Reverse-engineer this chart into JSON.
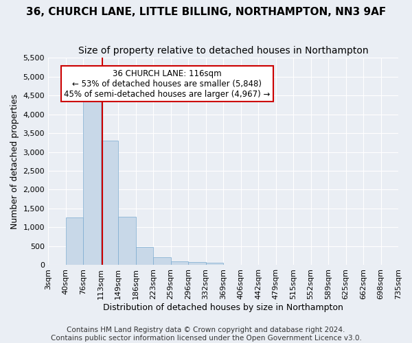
{
  "title": "36, CHURCH LANE, LITTLE BILLING, NORTHAMPTON, NN3 9AF",
  "subtitle": "Size of property relative to detached houses in Northampton",
  "xlabel": "Distribution of detached houses by size in Northampton",
  "ylabel": "Number of detached properties",
  "footer_line1": "Contains HM Land Registry data © Crown copyright and database right 2024.",
  "footer_line2": "Contains public sector information licensed under the Open Government Licence v3.0.",
  "bin_labels": [
    "3sqm",
    "40sqm",
    "76sqm",
    "113sqm",
    "149sqm",
    "186sqm",
    "223sqm",
    "259sqm",
    "296sqm",
    "332sqm",
    "369sqm",
    "406sqm",
    "442sqm",
    "479sqm",
    "515sqm",
    "552sqm",
    "589sqm",
    "625sqm",
    "662sqm",
    "698sqm",
    "735sqm"
  ],
  "bar_values": [
    0,
    1270,
    4340,
    3300,
    1280,
    490,
    215,
    100,
    80,
    60,
    0,
    0,
    0,
    0,
    0,
    0,
    0,
    0,
    0,
    0
  ],
  "bar_color": "#c8d8e8",
  "bar_edge_color": "#7aaacf",
  "annotation_text": "36 CHURCH LANE: 116sqm\n← 53% of detached houses are smaller (5,848)\n45% of semi-detached houses are larger (4,967) →",
  "annotation_box_color": "#ffffff",
  "annotation_box_edge_color": "#cc0000",
  "vertical_line_color": "#cc0000",
  "vertical_line_x": 3.083,
  "ylim": [
    0,
    5500
  ],
  "yticks": [
    0,
    500,
    1000,
    1500,
    2000,
    2500,
    3000,
    3500,
    4000,
    4500,
    5000,
    5500
  ],
  "bg_color": "#eaeef4",
  "plot_bg_color": "#eaeef4",
  "grid_color": "#ffffff",
  "title_fontsize": 11,
  "subtitle_fontsize": 10,
  "axis_label_fontsize": 9,
  "tick_fontsize": 8,
  "annotation_fontsize": 8.5,
  "footer_fontsize": 7.5
}
